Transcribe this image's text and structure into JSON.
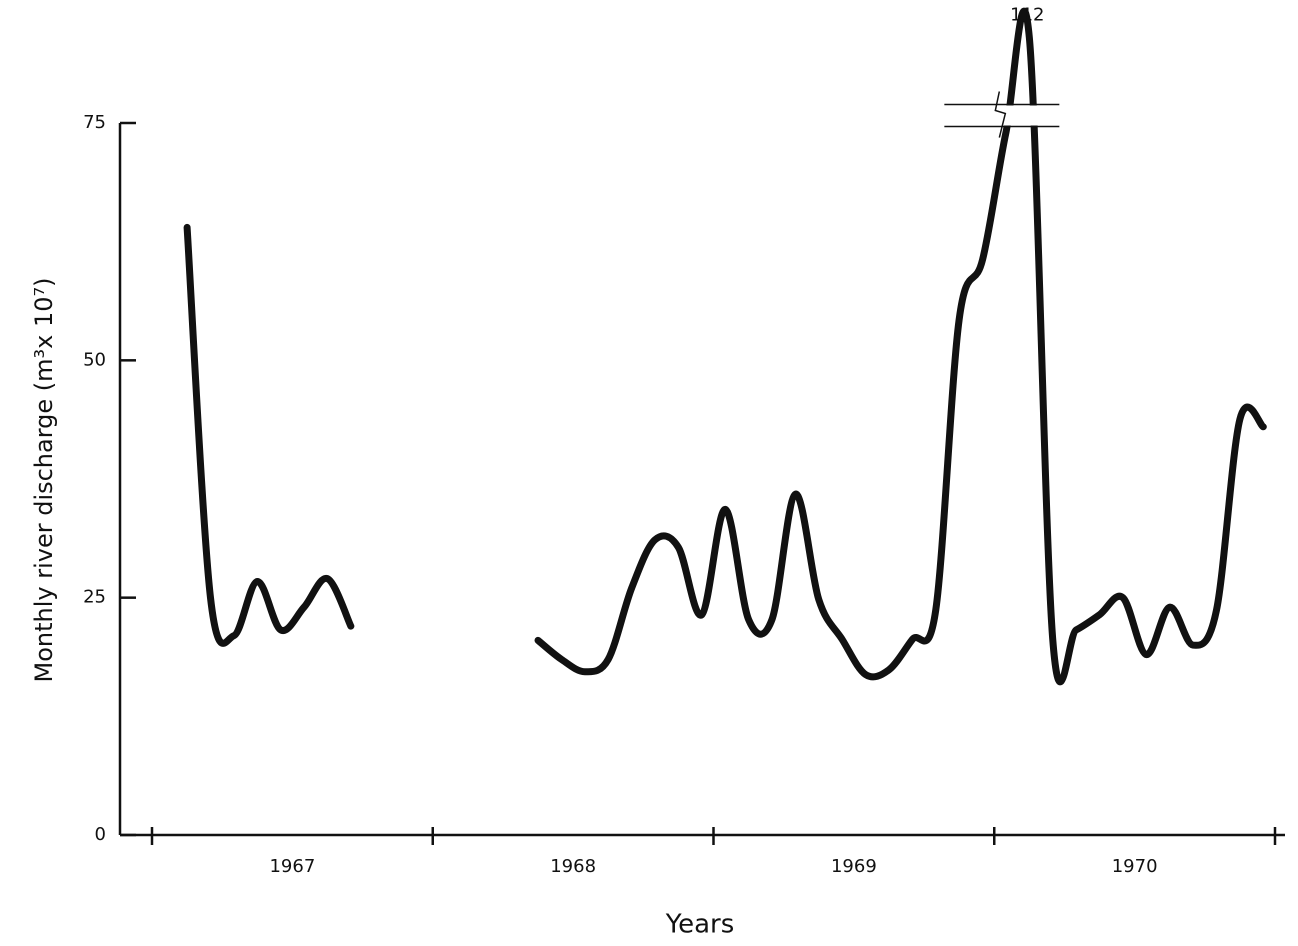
{
  "chart_data": {
    "type": "line",
    "ylabel": "Monthly river discharge (m³x 10⁷)",
    "xlabel": "Years",
    "year_labels": [
      "1967",
      "1968",
      "1969",
      "1970"
    ],
    "categories": [
      null,
      null,
      null,
      null,
      null,
      null,
      null,
      null,
      null,
      null,
      null,
      null,
      null,
      null,
      null,
      null,
      null,
      null,
      null,
      null,
      null,
      null,
      null,
      null,
      null,
      null,
      null,
      null,
      null,
      null,
      null,
      null,
      null,
      null,
      null,
      null,
      null,
      null,
      null,
      null,
      null,
      null,
      null,
      null,
      null,
      null,
      null,
      null
    ],
    "series": [
      {
        "color": "#111111",
        "values": [
          null,
          64,
          25,
          21,
          26.7,
          21.6,
          24,
          27,
          22,
          null,
          null,
          null,
          null,
          null,
          null,
          null,
          20.5,
          18.5,
          17.2,
          18.5,
          26,
          31.1,
          30.3,
          23.2,
          34.3,
          22.7,
          22.7,
          35.9,
          24.8,
          20.6,
          16.9,
          17.4,
          20.6,
          23.7,
          54.3,
          60.6,
          74,
          112,
          20.6,
          21.6,
          23.2,
          25,
          19,
          24,
          20,
          23.7,
          43.8,
          43
        ]
      }
    ],
    "ylim": [
      0,
      75
    ],
    "yticks": [
      0,
      25,
      50,
      75
    ],
    "y_break": [
      76,
      104
    ]
  }
}
